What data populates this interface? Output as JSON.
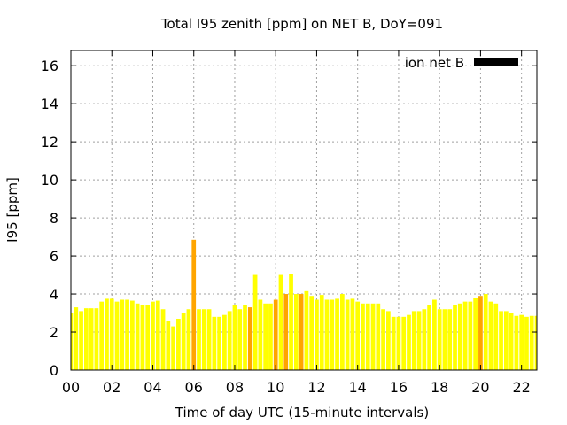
{
  "chart_data": {
    "type": "bar",
    "title": "Total I95 zenith [ppm] on NET B, DoY=091",
    "xlabel": "Time of day UTC (15-minute intervals)",
    "ylabel": "I95 [ppm]",
    "ylim": [
      0,
      16.8
    ],
    "xlim": [
      0,
      22.75
    ],
    "grid": true,
    "legend": {
      "position": "top-right",
      "entries": [
        {
          "label": "ion net B",
          "color": "#000000"
        }
      ]
    },
    "xticks": [
      "00",
      "02",
      "04",
      "06",
      "08",
      "10",
      "12",
      "14",
      "16",
      "18",
      "20",
      "22"
    ],
    "yticks": [
      "0",
      "2",
      "4",
      "6",
      "8",
      "10",
      "12",
      "14",
      "16"
    ],
    "colors": {
      "normal": "#ffff00",
      "highlight": "#ffa500"
    },
    "bar_step_hours": 0.25,
    "values": [
      3.0,
      3.3,
      3.1,
      3.25,
      3.25,
      3.25,
      3.6,
      3.75,
      3.75,
      3.6,
      3.7,
      3.7,
      3.65,
      3.5,
      3.4,
      3.4,
      3.6,
      3.65,
      3.2,
      2.6,
      2.3,
      2.7,
      3.0,
      3.2,
      6.85,
      3.2,
      3.2,
      3.2,
      2.8,
      2.8,
      2.9,
      3.1,
      3.4,
      3.2,
      3.4,
      3.3,
      5.0,
      3.7,
      3.5,
      3.5,
      3.7,
      5.0,
      4.0,
      5.05,
      4.0,
      4.0,
      4.15,
      3.9,
      3.7,
      3.95,
      3.7,
      3.7,
      3.75,
      4.0,
      3.7,
      3.75,
      3.6,
      3.5,
      3.5,
      3.5,
      3.5,
      3.2,
      3.1,
      2.8,
      2.8,
      2.8,
      2.9,
      3.1,
      3.1,
      3.2,
      3.4,
      3.7,
      3.2,
      3.2,
      3.2,
      3.4,
      3.5,
      3.6,
      3.6,
      3.8,
      3.9,
      4.0,
      3.6,
      3.5,
      3.1,
      3.1,
      3.0,
      2.85,
      2.9,
      2.8,
      2.85,
      2.85
    ],
    "highlight_indices": [
      24,
      35,
      40,
      42,
      45,
      80
    ]
  }
}
